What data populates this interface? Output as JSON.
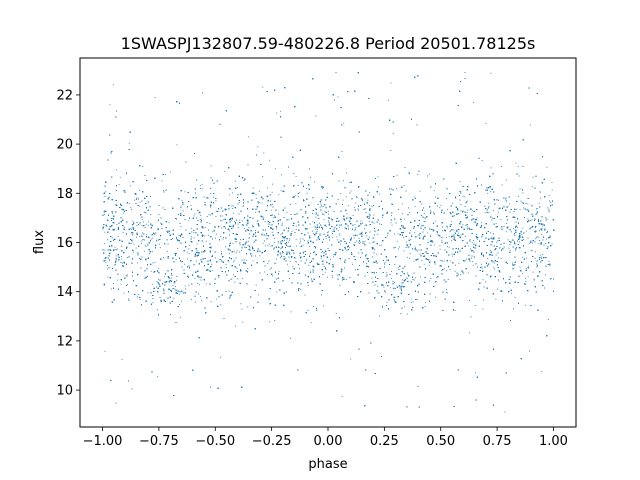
{
  "chart_data": {
    "type": "scatter",
    "title": "1SWASPJ132807.59-480226.8 Period 20501.78125s",
    "xlabel": "phase",
    "ylabel": "flux",
    "xlim": [
      -1.1,
      1.1
    ],
    "ylim": [
      8.5,
      23.5
    ],
    "xticks": [
      -1.0,
      -0.75,
      -0.5,
      -0.25,
      0.0,
      0.25,
      0.5,
      0.75,
      1.0
    ],
    "xtick_labels": [
      "−1.00",
      "−0.75",
      "−0.50",
      "−0.25",
      "0.00",
      "0.25",
      "0.50",
      "0.75",
      "1.00"
    ],
    "yticks": [
      10,
      12,
      14,
      16,
      18,
      20,
      22
    ],
    "ytick_labels": [
      "10",
      "12",
      "14",
      "16",
      "18",
      "20",
      "22"
    ],
    "grid": false,
    "marker_color": "#1f77b4",
    "series": [
      {
        "phase_range": [
          -1.0,
          1.0
        ],
        "flux_range": [
          9.1,
          23.1
        ],
        "mean_flux": 16.2,
        "core_band": [
          14.7,
          17.6
        ],
        "dips": [
          {
            "phase": -0.7,
            "flux": 14.1
          },
          {
            "phase": 0.3,
            "flux": 14.1
          }
        ]
      }
    ]
  }
}
